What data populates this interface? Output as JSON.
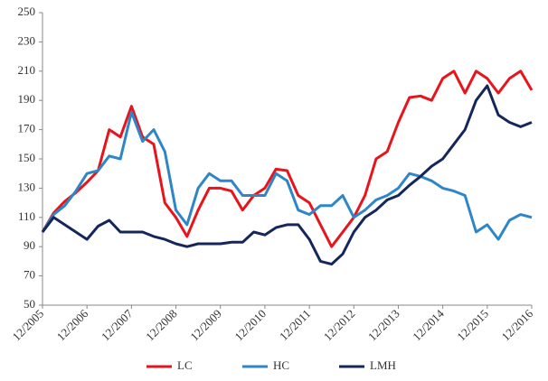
{
  "chart_data": {
    "type": "line",
    "categories": [
      "12/2005",
      null,
      null,
      null,
      "12/2006",
      null,
      null,
      null,
      "12/2007",
      null,
      null,
      null,
      "12/2008",
      null,
      null,
      null,
      "12/2009",
      null,
      null,
      null,
      "12/2010",
      null,
      null,
      null,
      "12/2011",
      null,
      null,
      null,
      "12/2012",
      null,
      null,
      null,
      "12/2013",
      null,
      null,
      null,
      "12/2014",
      null,
      null,
      null,
      "12/2015",
      null,
      null,
      null,
      "12/2016"
    ],
    "series": [
      {
        "name": "LC",
        "color": "#e8141c",
        "values": [
          100,
          113,
          121,
          127,
          134,
          142,
          170,
          165,
          186,
          165,
          160,
          120,
          110,
          97,
          115,
          130,
          130,
          128,
          115,
          125,
          130,
          143,
          142,
          125,
          120,
          105,
          90,
          100,
          110,
          125,
          150,
          155,
          175,
          192,
          193,
          190,
          205,
          210,
          195,
          210,
          205,
          195,
          205,
          210,
          197
        ]
      },
      {
        "name": "HC",
        "color": "#2e86c8",
        "values": [
          100,
          112,
          118,
          128,
          140,
          142,
          152,
          150,
          182,
          162,
          170,
          155,
          115,
          105,
          130,
          140,
          135,
          135,
          125,
          125,
          125,
          140,
          135,
          115,
          112,
          118,
          118,
          125,
          110,
          115,
          122,
          125,
          130,
          140,
          138,
          135,
          130,
          128,
          125,
          100,
          105,
          95,
          108,
          112,
          110
        ]
      },
      {
        "name": "LMH",
        "color": "#15275a",
        "values": [
          100,
          110,
          105,
          100,
          95,
          104,
          108,
          100,
          100,
          100,
          97,
          95,
          92,
          90,
          92,
          92,
          92,
          93,
          93,
          100,
          98,
          103,
          105,
          105,
          95,
          80,
          78,
          85,
          100,
          110,
          115,
          122,
          125,
          132,
          138,
          145,
          150,
          160,
          170,
          190,
          200,
          180,
          175,
          172,
          175
        ]
      }
    ],
    "ylim": [
      50,
      250
    ],
    "yticks": [
      50,
      70,
      90,
      110,
      130,
      150,
      170,
      190,
      210,
      230,
      250
    ],
    "grid": false
  }
}
